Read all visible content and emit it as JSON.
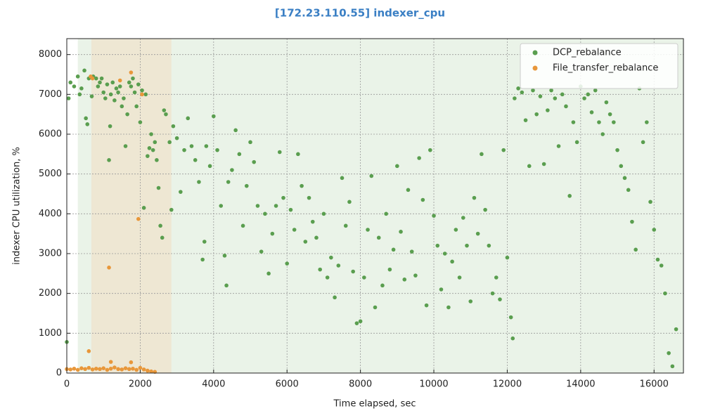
{
  "chart_data": {
    "type": "scatter",
    "title": "[172.23.110.55] indexer_cpu",
    "xlabel": "Time elapsed, sec",
    "ylabel": "indexer CPU utilization, %",
    "xlim": [
      0,
      16800
    ],
    "ylim": [
      0,
      8400
    ],
    "xticks": [
      0,
      2000,
      4000,
      6000,
      8000,
      10000,
      12000,
      14000,
      16000
    ],
    "yticks": [
      0,
      1000,
      2000,
      3000,
      4000,
      5000,
      6000,
      7000,
      8000
    ],
    "grid": true,
    "legend": "upper right",
    "spans": [
      {
        "start": 300,
        "end": 16800,
        "color": "#eaf3e8"
      },
      {
        "start": 670,
        "end": 2850,
        "color": "#eee7d3"
      }
    ],
    "series": [
      {
        "name": "DCP_rebalance",
        "color": "#5a9e4f",
        "x": [
          0,
          50,
          100,
          200,
          300,
          350,
          400,
          480,
          520,
          560,
          600,
          680,
          720,
          800,
          850,
          900,
          950,
          1000,
          1050,
          1100,
          1150,
          1180,
          1200,
          1250,
          1300,
          1350,
          1400,
          1450,
          1500,
          1550,
          1600,
          1650,
          1700,
          1750,
          1800,
          1850,
          1900,
          1950,
          2000,
          2050,
          2100,
          2150,
          2200,
          2250,
          2300,
          2350,
          2400,
          2450,
          2500,
          2550,
          2600,
          2650,
          2700,
          2800,
          2850,
          2900,
          3000,
          3100,
          3200,
          3300,
          3400,
          3500,
          3600,
          3700,
          3750,
          3800,
          3900,
          4000,
          4100,
          4200,
          4300,
          4350,
          4400,
          4500,
          4600,
          4700,
          4800,
          4900,
          5000,
          5100,
          5200,
          5300,
          5400,
          5500,
          5600,
          5700,
          5800,
          5900,
          6000,
          6100,
          6200,
          6300,
          6400,
          6500,
          6600,
          6700,
          6800,
          6900,
          7000,
          7100,
          7200,
          7300,
          7400,
          7500,
          7600,
          7700,
          7800,
          7900,
          8000,
          8100,
          8200,
          8300,
          8400,
          8500,
          8600,
          8700,
          8800,
          8900,
          9000,
          9100,
          9200,
          9300,
          9400,
          9500,
          9600,
          9700,
          9800,
          9900,
          10000,
          10100,
          10200,
          10300,
          10400,
          10500,
          10600,
          10700,
          10800,
          10900,
          11000,
          11100,
          11200,
          11300,
          11400,
          11500,
          11600,
          11700,
          11800,
          11900,
          12000,
          12100,
          12150,
          12200,
          12300,
          12400,
          12500,
          12600,
          12700,
          12800,
          12900,
          13000,
          13100,
          13200,
          13300,
          13400,
          13500,
          13600,
          13700,
          13800,
          13900,
          14000,
          14100,
          14200,
          14300,
          14400,
          14500,
          14600,
          14700,
          14800,
          14900,
          15000,
          15100,
          15200,
          15300,
          15400,
          15500,
          15600,
          15700,
          15800,
          15900,
          16000,
          16100,
          16200,
          16300,
          16400,
          16500,
          16600
        ],
        "values": [
          780,
          6900,
          7300,
          7200,
          7450,
          7000,
          7150,
          7600,
          6400,
          6250,
          7400,
          6950,
          7450,
          7400,
          7200,
          7300,
          7400,
          7050,
          6900,
          7250,
          5350,
          6200,
          7000,
          7300,
          6850,
          7150,
          7050,
          7200,
          6700,
          6900,
          5700,
          6500,
          7300,
          7200,
          7400,
          7050,
          6700,
          7250,
          6300,
          7100,
          4150,
          7000,
          5450,
          5650,
          6000,
          5600,
          5800,
          5350,
          4650,
          3700,
          3400,
          6600,
          6500,
          5800,
          4100,
          6200,
          5900,
          4550,
          5600,
          6400,
          5700,
          5350,
          4800,
          2850,
          3300,
          5700,
          5200,
          6450,
          5600,
          4200,
          2950,
          2200,
          4800,
          5100,
          6100,
          5500,
          3700,
          4700,
          5800,
          5300,
          4200,
          3050,
          4000,
          2500,
          3500,
          4200,
          5550,
          4400,
          2750,
          4100,
          3600,
          5500,
          4700,
          3300,
          4400,
          3800,
          3400,
          2600,
          4000,
          2400,
          2900,
          1900,
          2700,
          4900,
          3700,
          4300,
          2550,
          1250,
          1300,
          2400,
          3600,
          4950,
          1650,
          3400,
          2200,
          4000,
          2600,
          3100,
          5200,
          3550,
          2350,
          4600,
          3050,
          2450,
          5400,
          4350,
          1700,
          5600,
          3950,
          3200,
          2100,
          3000,
          1650,
          2800,
          3600,
          2400,
          3900,
          3200,
          1800,
          4400,
          3500,
          5500,
          4100,
          3200,
          2000,
          2400,
          1850,
          5600,
          2900,
          1400,
          870,
          6900,
          7150,
          7050,
          6350,
          5200,
          7100,
          6500,
          6950,
          5250,
          6600,
          7100,
          6900,
          5700,
          7000,
          6700,
          4450,
          6300,
          5800,
          7200,
          6900,
          7000,
          6550,
          7100,
          6300,
          6000,
          6800,
          6500,
          6300,
          5600,
          5200,
          4900,
          4600,
          3800,
          3100,
          7150,
          5800,
          6300,
          4300,
          3600,
          2850,
          2700,
          2000,
          500,
          170,
          1100
        ]
      },
      {
        "name": "File_transfer_rebalance",
        "color": "#e8973a",
        "x": [
          0,
          100,
          200,
          300,
          400,
          500,
          600,
          700,
          800,
          900,
          1000,
          1100,
          1200,
          1300,
          1400,
          1500,
          1600,
          1700,
          1800,
          1900,
          2000,
          2100,
          2200,
          2300,
          2400,
          600,
          650,
          700,
          1150,
          1200,
          1450,
          1750,
          1950,
          2050,
          1750
        ],
        "values": [
          100,
          90,
          110,
          80,
          120,
          100,
          130,
          90,
          110,
          100,
          120,
          80,
          110,
          140,
          100,
          90,
          120,
          100,
          110,
          80,
          130,
          90,
          60,
          40,
          30,
          550,
          7450,
          7400,
          2650,
          280,
          7350,
          7550,
          3870,
          7000,
          270
        ]
      }
    ]
  }
}
